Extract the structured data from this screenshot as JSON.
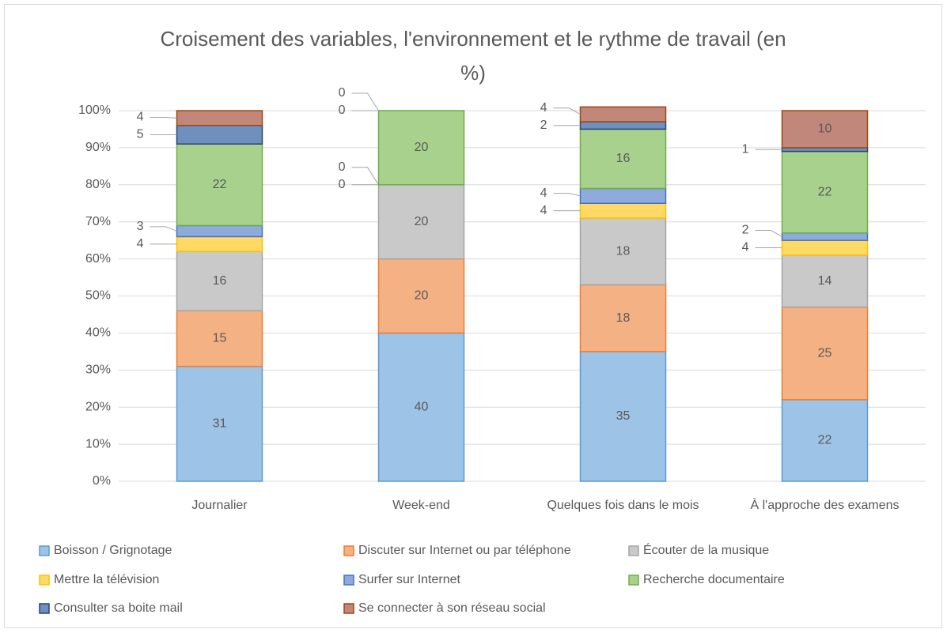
{
  "chart_data": {
    "type": "stacked_bar",
    "title": "Croisement des variables, l'environnement et le rythme de travail (en %)",
    "categories": [
      "Journalier",
      "Week-end",
      "Quelques fois dans le mois",
      "À l'approche des examens"
    ],
    "series": [
      {
        "name": "Boisson / Grignotage",
        "color": "#9dc3e6",
        "edgecolor": "#5b9bd5",
        "values": [
          31,
          40,
          35,
          22
        ]
      },
      {
        "name": "Discuter sur Internet ou par téléphone",
        "color": "#f4b183",
        "edgecolor": "#ed7d31",
        "values": [
          15,
          20,
          18,
          25
        ]
      },
      {
        "name": "Écouter de la musique",
        "color": "#c9c9c9",
        "edgecolor": "#a5a5a5",
        "values": [
          16,
          20,
          18,
          14
        ]
      },
      {
        "name": "Mettre la télévision",
        "color": "#ffd966",
        "edgecolor": "#ffc000",
        "values": [
          4,
          0,
          4,
          4
        ]
      },
      {
        "name": "Surfer sur Internet",
        "color": "#8faadc",
        "edgecolor": "#4472c4",
        "values": [
          3,
          0,
          4,
          2
        ]
      },
      {
        "name": "Recherche documentaire",
        "color": "#a9d18e",
        "edgecolor": "#70ad47",
        "values": [
          22,
          20,
          16,
          22
        ]
      },
      {
        "name": "Consulter sa boite mail",
        "color": "#6f8fbf",
        "edgecolor": "#264478",
        "values": [
          5,
          0,
          2,
          1
        ]
      },
      {
        "name": "Se connecter à son réseau social",
        "color": "#c0877a",
        "edgecolor": "#9e480e",
        "values": [
          4,
          0,
          4,
          10
        ]
      }
    ],
    "ylim": [
      0,
      100
    ],
    "yticks": [
      {
        "value": 0,
        "label": "0%"
      },
      {
        "value": 10,
        "label": "10%"
      },
      {
        "value": 20,
        "label": "20%"
      },
      {
        "value": 30,
        "label": "30%"
      },
      {
        "value": 40,
        "label": "40%"
      },
      {
        "value": 50,
        "label": "50%"
      },
      {
        "value": 60,
        "label": "60%"
      },
      {
        "value": 70,
        "label": "70%"
      },
      {
        "value": 80,
        "label": "80%"
      },
      {
        "value": 90,
        "label": "90%"
      },
      {
        "value": 100,
        "label": "100%"
      }
    ],
    "grid": true,
    "legend": "bottom"
  }
}
